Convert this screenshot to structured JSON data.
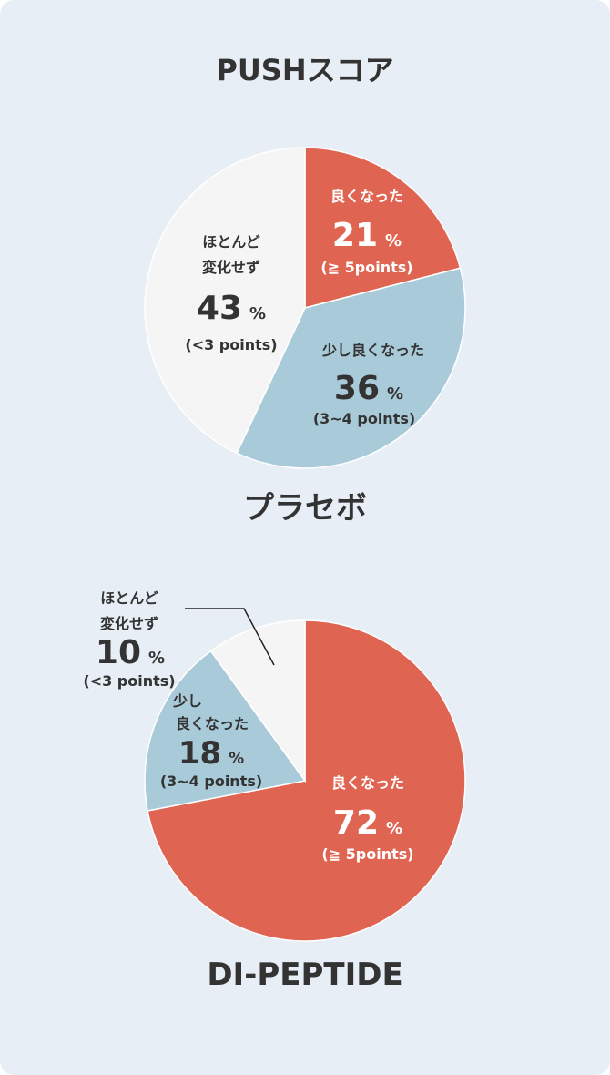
{
  "page_title": "PUSHスコア",
  "colors": {
    "background": "#e7eef5",
    "good": "#e06452",
    "slightly_good": "#a9cad8",
    "no_change": "#f5f5f5",
    "text_dark": "#333333",
    "text_light": "#ffffff"
  },
  "chart_data": [
    {
      "type": "pie",
      "title": "プラセボ",
      "unit": "%",
      "slices": [
        {
          "label": "良くなった",
          "value": 21,
          "note": "(≧ 5points)"
        },
        {
          "label": "少し良くなった",
          "value": 36,
          "note": "(3~4 points)"
        },
        {
          "label": "ほとんど変化せず",
          "value": 43,
          "note": "(<3 points)"
        }
      ]
    },
    {
      "type": "pie",
      "title": "DI-PEPTIDE",
      "unit": "%",
      "slices": [
        {
          "label": "良くなった",
          "value": 72,
          "note": "(≧ 5points)"
        },
        {
          "label": "少し良くなった",
          "value": 18,
          "note": "(3~4 points)"
        },
        {
          "label": "ほとんど変化せず",
          "value": 10,
          "note": "(<3 points)"
        }
      ]
    }
  ]
}
